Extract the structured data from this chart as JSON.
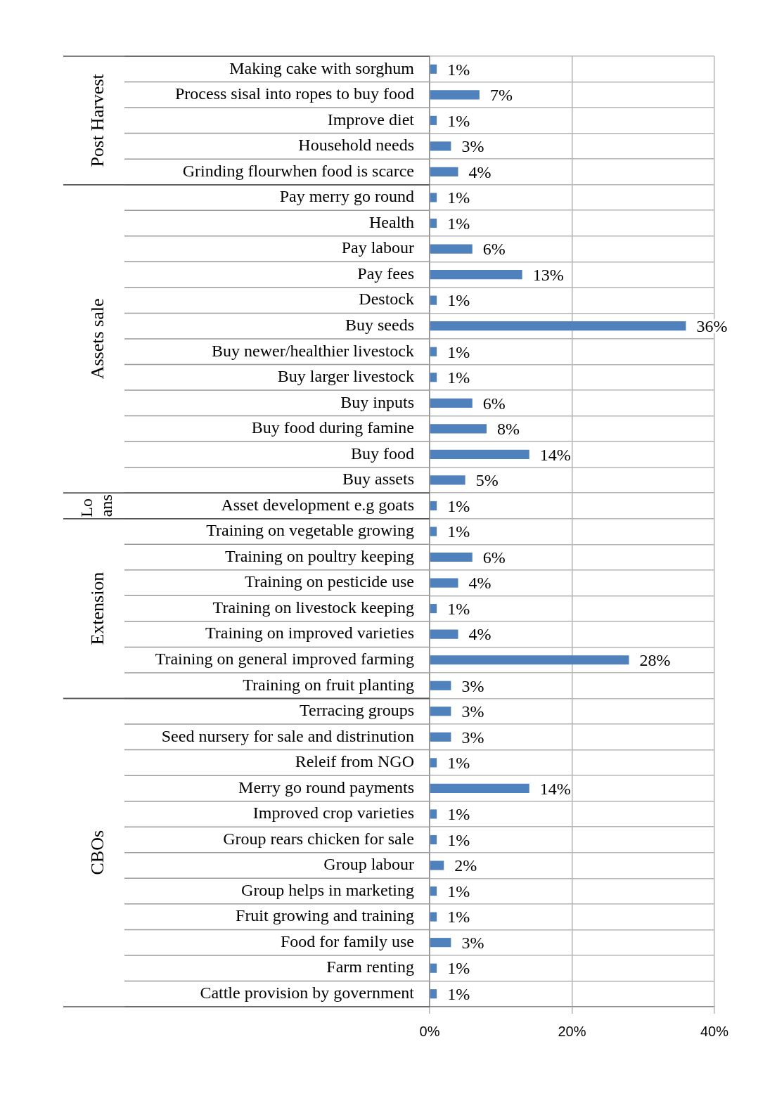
{
  "chart_data": {
    "type": "bar",
    "orientation": "horizontal",
    "categories": [
      "Making cake with sorghum",
      "Process sisal into ropes to buy food",
      "Improve diet",
      "Household needs",
      "Grinding flourwhen food is scarce",
      "Pay merry go round",
      "Health",
      "Pay labour",
      "Pay fees",
      "Destock",
      "Buy seeds",
      "Buy newer/healthier livestock",
      "Buy larger livestock",
      "Buy inputs",
      "Buy food during famine",
      "Buy food",
      "Buy assets",
      "Asset development e.g goats",
      "Training on vegetable growing",
      "Training on poultry keeping",
      "Training on pesticide use",
      "Training on livestock keeping",
      "Training on improved varieties",
      "Training on general improved farming",
      "Training on fruit planting",
      "Terracing groups",
      "Seed nursery for sale and distrinution",
      "Releif from NGO",
      "Merry go round payments",
      "Improved crop varieties",
      "Group rears chicken for sale",
      "Group labour",
      "Group helps in marketing",
      "Fruit growing and training",
      "Food for family use",
      "Farm renting",
      "Cattle provision by government"
    ],
    "values": [
      1,
      7,
      1,
      3,
      4,
      1,
      1,
      6,
      13,
      1,
      36,
      1,
      1,
      6,
      8,
      14,
      5,
      1,
      1,
      6,
      4,
      1,
      4,
      28,
      3,
      3,
      3,
      1,
      14,
      1,
      1,
      2,
      1,
      1,
      3,
      1,
      1
    ],
    "value_labels": [
      "1%",
      "7%",
      "1%",
      "3%",
      "4%",
      "1%",
      "1%",
      "6%",
      "13%",
      "1%",
      "36%",
      "1%",
      "1%",
      "6%",
      "8%",
      "14%",
      "5%",
      "1%",
      "1%",
      "6%",
      "4%",
      "1%",
      "4%",
      "28%",
      "3%",
      "3%",
      "3%",
      "1%",
      "14%",
      "1%",
      "1%",
      "2%",
      "1%",
      "1%",
      "3%",
      "1%",
      "1%"
    ],
    "color": "#4f81bd",
    "xlim": [
      0,
      40
    ],
    "xticks": [
      {
        "value": 0,
        "label": "0%"
      },
      {
        "value": 20,
        "label": "20%"
      },
      {
        "value": 40,
        "label": "40%"
      }
    ],
    "grid": true,
    "annotations": [
      "Post Harvest",
      "Assets sale",
      "Loans",
      "Extension",
      "CBOs"
    ]
  }
}
